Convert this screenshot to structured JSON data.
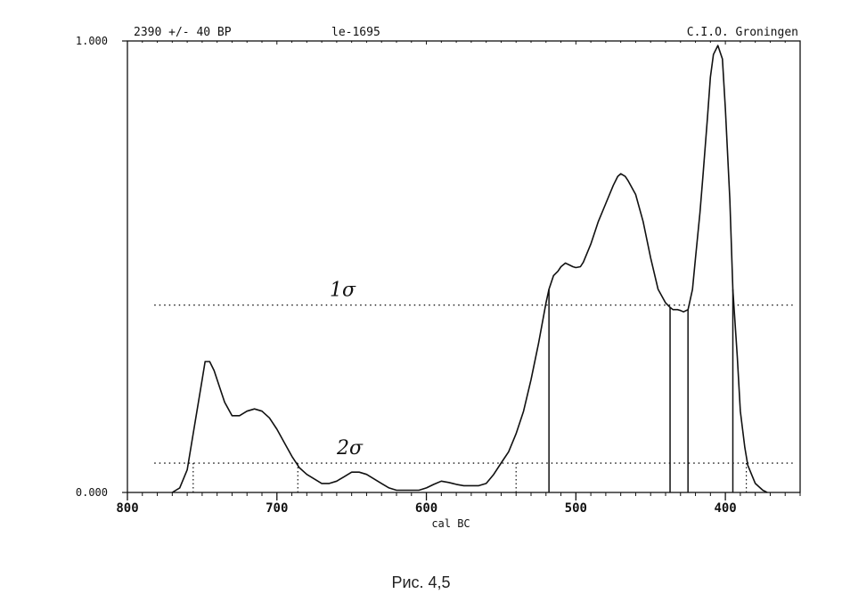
{
  "chart_data": {
    "type": "line",
    "header": {
      "left": "2390 +/- 40 BP",
      "middle": "le-1695",
      "right": "C.I.O. Groningen"
    },
    "xlabel": "cal BC",
    "xlim": [
      800,
      350
    ],
    "ylim": [
      0,
      1
    ],
    "y_ticks": [
      "0.000",
      "1.000"
    ],
    "x_ticks": [
      800,
      700,
      600,
      500,
      400
    ],
    "x_tick_labels": [
      "800",
      "700",
      "600",
      "500",
      "400"
    ],
    "grid": false,
    "series": [
      {
        "x": [
          770,
          765,
          760,
          755,
          750,
          748,
          745,
          742,
          738,
          735,
          730,
          725,
          720,
          715,
          710,
          705,
          700,
          695,
          690,
          685,
          680,
          675,
          670,
          665,
          660,
          655,
          650,
          645,
          640,
          635,
          630,
          625,
          620,
          615,
          610,
          605,
          600,
          595,
          590,
          585,
          580,
          575,
          570,
          565,
          560,
          555,
          550,
          545,
          540,
          535,
          530,
          525,
          520,
          518,
          515,
          512,
          510,
          507,
          505,
          502,
          500,
          497,
          495,
          490,
          485,
          480,
          475,
          472,
          470,
          467,
          465,
          460,
          455,
          450,
          445,
          440,
          437,
          435,
          432,
          430,
          428,
          425,
          422,
          420,
          417,
          415,
          412,
          410,
          408,
          405,
          402,
          400,
          397,
          395,
          392,
          390,
          387,
          385,
          380,
          375,
          372
        ],
        "y": [
          0.0,
          0.01,
          0.05,
          0.15,
          0.25,
          0.29,
          0.29,
          0.27,
          0.23,
          0.2,
          0.17,
          0.17,
          0.18,
          0.185,
          0.18,
          0.165,
          0.14,
          0.11,
          0.08,
          0.055,
          0.04,
          0.03,
          0.02,
          0.02,
          0.025,
          0.035,
          0.045,
          0.045,
          0.04,
          0.03,
          0.02,
          0.01,
          0.005,
          0.005,
          0.005,
          0.005,
          0.01,
          0.018,
          0.025,
          0.022,
          0.018,
          0.015,
          0.015,
          0.015,
          0.02,
          0.04,
          0.065,
          0.09,
          0.13,
          0.18,
          0.25,
          0.33,
          0.42,
          0.45,
          0.48,
          0.49,
          0.5,
          0.508,
          0.505,
          0.5,
          0.498,
          0.5,
          0.51,
          0.55,
          0.6,
          0.64,
          0.68,
          0.7,
          0.706,
          0.7,
          0.69,
          0.66,
          0.6,
          0.52,
          0.45,
          0.42,
          0.41,
          0.405,
          0.405,
          0.403,
          0.4,
          0.405,
          0.45,
          0.52,
          0.62,
          0.7,
          0.83,
          0.92,
          0.97,
          0.99,
          0.96,
          0.85,
          0.65,
          0.45,
          0.3,
          0.18,
          0.1,
          0.06,
          0.02,
          0.005,
          0.0
        ]
      }
    ],
    "thresholds": [
      {
        "label": "1σ",
        "y": 0.415,
        "x_from": 782,
        "x_to": 355
      },
      {
        "label": "2σ",
        "y": 0.065,
        "x_from": 782,
        "x_to": 355
      }
    ],
    "range_lines": {
      "one_sigma_solid": [
        518,
        437,
        425,
        395
      ],
      "two_sigma_dotted": [
        756,
        686,
        540,
        386
      ]
    },
    "caption": "Рис. 4,5"
  }
}
